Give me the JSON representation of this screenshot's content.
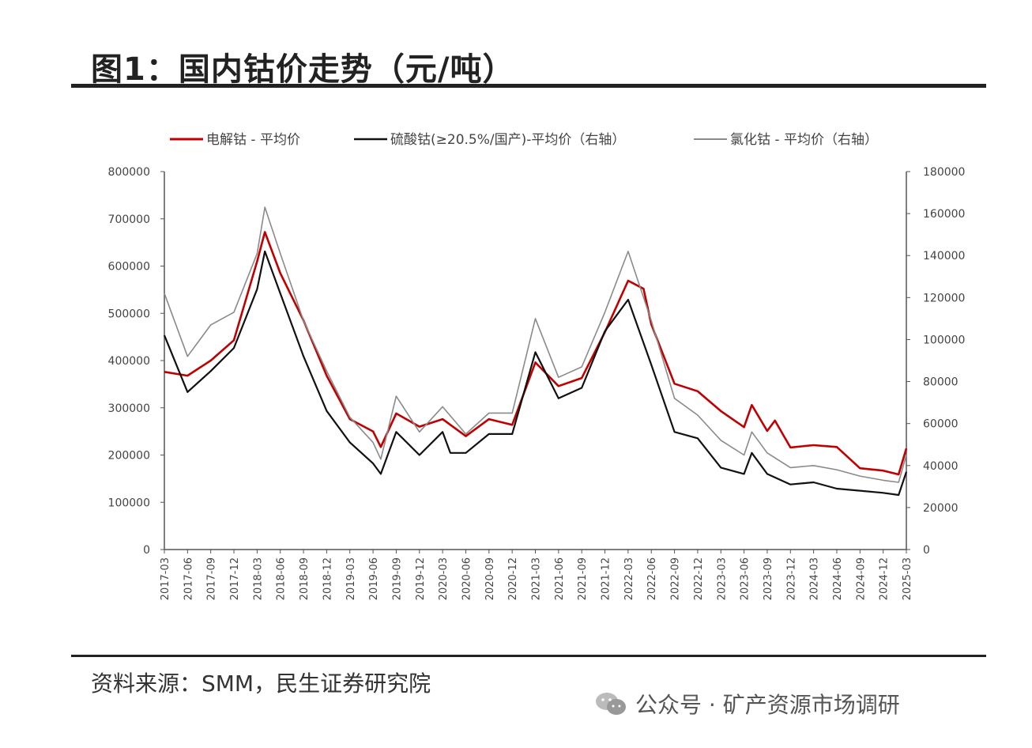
{
  "title": "图1：国内钴价走势（元/吨）",
  "source": "资料来源：SMM，民生证券研究院",
  "watermark": "公众号 · 矿产资源市场调研",
  "chart_data": {
    "type": "line",
    "title": "图1：国内钴价走势（元/吨）",
    "xlabel": "",
    "ylabel_left": "",
    "ylabel_right": "",
    "ylim_left": [
      0,
      800000
    ],
    "ylim_right": [
      0,
      180000
    ],
    "yticks_left": [
      "0",
      "100000",
      "200000",
      "300000",
      "400000",
      "500000",
      "600000",
      "700000",
      "800000"
    ],
    "yticks_right": [
      "0",
      "20000",
      "40000",
      "60000",
      "80000",
      "100000",
      "120000",
      "140000",
      "160000",
      "180000"
    ],
    "xticks": [
      "2017-03",
      "2017-06",
      "2017-09",
      "2017-12",
      "2018-03",
      "2018-06",
      "2018-09",
      "2018-12",
      "2019-03",
      "2019-06",
      "2019-09",
      "2019-12",
      "2020-03",
      "2020-06",
      "2020-09",
      "2020-12",
      "2021-03",
      "2021-06",
      "2021-09",
      "2021-12",
      "2022-03",
      "2022-06",
      "2022-09",
      "2022-12",
      "2023-03",
      "2023-06",
      "2023-09",
      "2023-12",
      "2024-03",
      "2024-06",
      "2024-09",
      "2024-12",
      "2025-03"
    ],
    "legend_position": "top",
    "grid": false,
    "series": [
      {
        "name": "电解钴 - 平均价",
        "axis": "left",
        "color": "#c00000",
        "x": [
          "2017-03",
          "2017-06",
          "2017-09",
          "2017-12",
          "2018-03",
          "2018-04",
          "2018-06",
          "2018-09",
          "2018-12",
          "2019-03",
          "2019-06",
          "2019-07",
          "2019-09",
          "2019-12",
          "2020-03",
          "2020-06",
          "2020-09",
          "2020-12",
          "2021-03",
          "2021-06",
          "2021-09",
          "2021-12",
          "2022-03",
          "2022-05",
          "2022-06",
          "2022-09",
          "2022-12",
          "2023-03",
          "2023-06",
          "2023-07",
          "2023-09",
          "2023-10",
          "2023-12",
          "2024-03",
          "2024-06",
          "2024-09",
          "2024-12",
          "2025-02",
          "2025-03"
        ],
        "values": [
          376000,
          368000,
          400000,
          443000,
          610000,
          672000,
          585000,
          485000,
          368000,
          276000,
          250000,
          217000,
          288000,
          260000,
          276000,
          240000,
          276000,
          264000,
          396000,
          346000,
          363000,
          460000,
          569000,
          552000,
          477000,
          351000,
          335000,
          293000,
          259000,
          306000,
          251000,
          273000,
          216000,
          221000,
          217000,
          172000,
          167000,
          159000,
          214000
        ]
      },
      {
        "name": "硫酸钴(≥20.5%/国产)-平均价（右轴）",
        "axis": "right",
        "color": "#111111",
        "x": [
          "2017-03",
          "2017-06",
          "2017-09",
          "2017-12",
          "2018-03",
          "2018-04",
          "2018-06",
          "2018-09",
          "2018-12",
          "2019-03",
          "2019-06",
          "2019-07",
          "2019-09",
          "2019-12",
          "2020-03",
          "2020-04",
          "2020-06",
          "2020-09",
          "2020-12",
          "2021-03",
          "2021-06",
          "2021-09",
          "2021-12",
          "2022-03",
          "2022-06",
          "2022-09",
          "2022-12",
          "2023-03",
          "2023-06",
          "2023-07",
          "2023-09",
          "2023-12",
          "2024-03",
          "2024-06",
          "2024-09",
          "2024-12",
          "2025-02",
          "2025-03"
        ],
        "values": [
          102000,
          75000,
          85000,
          96000,
          124000,
          142000,
          122000,
          92000,
          66000,
          51000,
          41000,
          36000,
          56000,
          45000,
          56000,
          46000,
          46000,
          55000,
          55000,
          94000,
          72000,
          77000,
          104000,
          119000,
          88000,
          56000,
          53000,
          39000,
          36000,
          46000,
          36000,
          31000,
          32000,
          29000,
          28000,
          27000,
          26000,
          37000
        ]
      },
      {
        "name": "氯化钴 - 平均价（右轴）",
        "axis": "right",
        "color": "#8a8a8a",
        "x": [
          "2017-03",
          "2017-06",
          "2017-09",
          "2017-12",
          "2018-03",
          "2018-04",
          "2018-06",
          "2018-09",
          "2018-12",
          "2019-03",
          "2019-06",
          "2019-07",
          "2019-09",
          "2019-12",
          "2020-03",
          "2020-06",
          "2020-09",
          "2020-12",
          "2021-03",
          "2021-06",
          "2021-09",
          "2021-12",
          "2022-03",
          "2022-06",
          "2022-09",
          "2022-12",
          "2023-03",
          "2023-06",
          "2023-07",
          "2023-09",
          "2023-12",
          "2024-03",
          "2024-06",
          "2024-09",
          "2024-12",
          "2025-02",
          "2025-03"
        ],
        "values": [
          122000,
          92000,
          107000,
          113000,
          141000,
          163000,
          141000,
          109000,
          85000,
          63000,
          51000,
          43000,
          73000,
          56000,
          68000,
          55000,
          65000,
          65000,
          110000,
          82000,
          87000,
          113000,
          142000,
          109000,
          72000,
          64000,
          52000,
          45000,
          56000,
          46000,
          39000,
          40000,
          38000,
          35000,
          33000,
          32000,
          45000
        ]
      }
    ]
  }
}
